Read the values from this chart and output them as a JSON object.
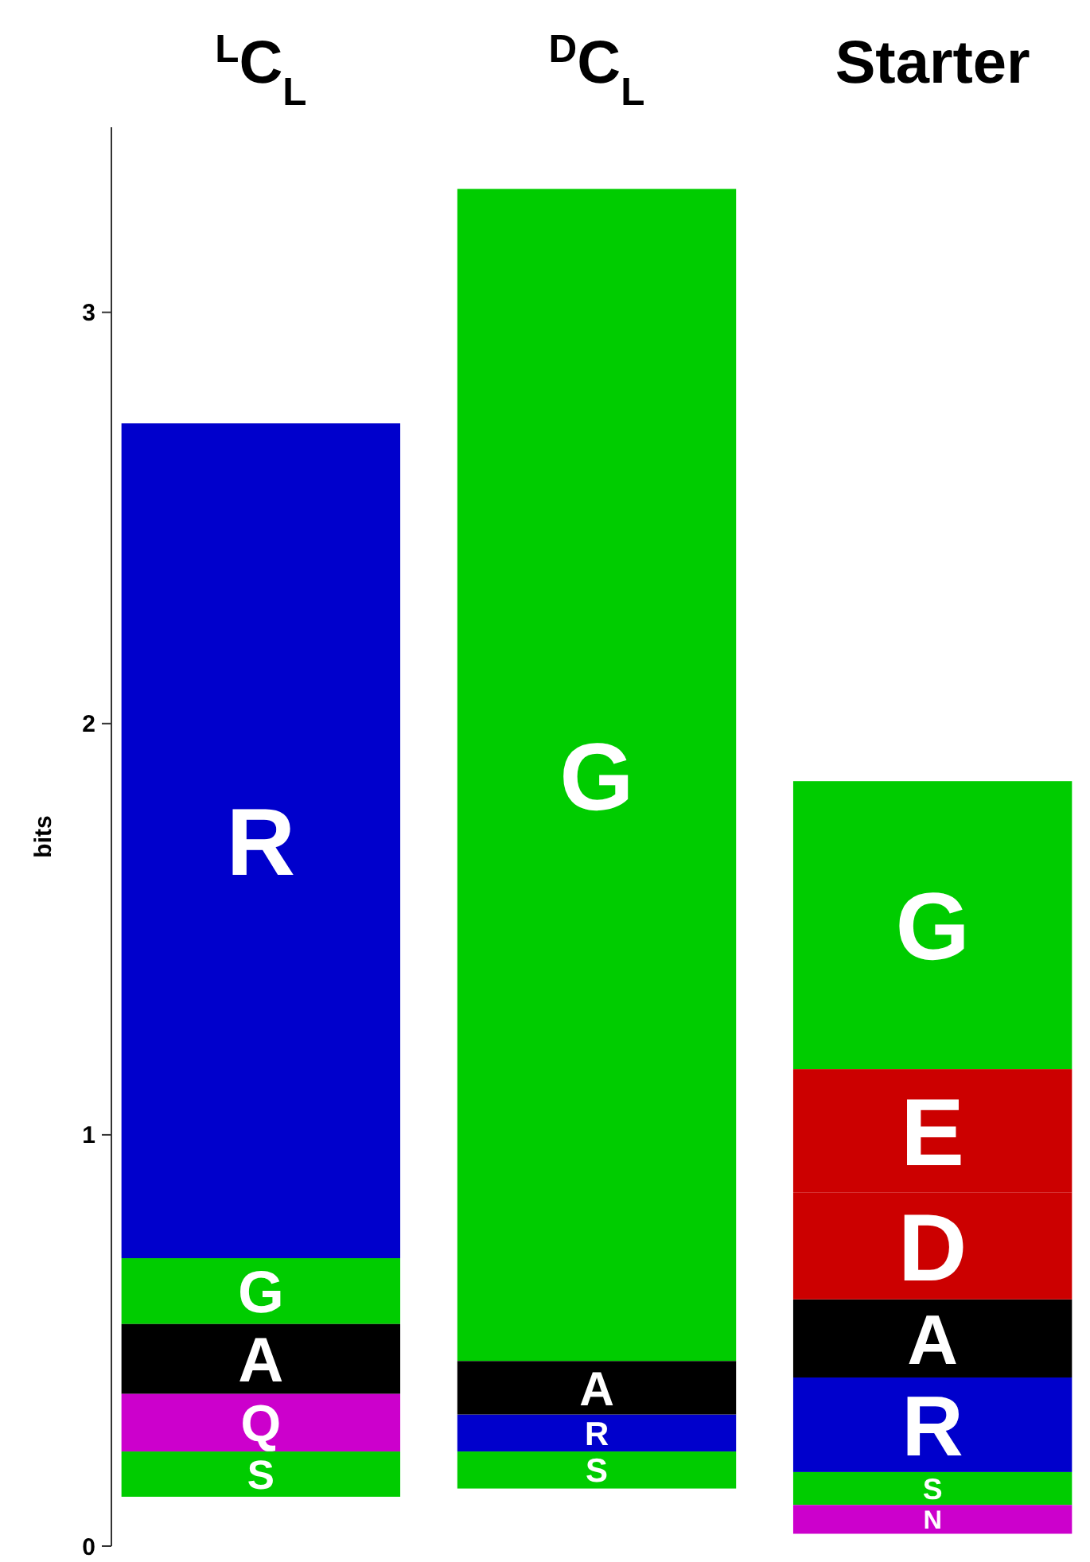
{
  "chart_data": {
    "type": "bar",
    "ylabel": "bits",
    "categories": [
      "$^{L}$C$_{L}$",
      "$^{D}$C$_{L}$",
      "Starter"
    ],
    "ylim": [
      0,
      3.45
    ],
    "yticks": [
      0,
      1,
      2,
      3
    ],
    "grid": false,
    "series": [
      {
        "name": "R",
        "color": "#0000cc",
        "values": [
          2.03,
          0.09,
          0.23
        ],
        "base": [
          0.7,
          0.23,
          0.18
        ]
      },
      {
        "name": "G",
        "color": "#00cc00",
        "values": [
          0.16,
          2.85,
          0.7
        ],
        "base": [
          0.54,
          0.45,
          1.16
        ]
      },
      {
        "name": "A",
        "color": "#000000",
        "values": [
          0.17,
          0.13,
          0.19
        ],
        "base": [
          0.37,
          0.32,
          0.41
        ]
      },
      {
        "name": "Q",
        "color": "#cc00cc",
        "values": [
          0.14,
          null,
          null
        ],
        "base": [
          0.23,
          null,
          null
        ]
      },
      {
        "name": "S",
        "color": "#00cc00",
        "values": [
          0.11,
          0.09,
          0.08
        ],
        "base": [
          0.12,
          0.14,
          0.1
        ]
      },
      {
        "name": "E",
        "color": "#cc0000",
        "values": [
          null,
          null,
          0.3
        ],
        "base": [
          null,
          null,
          0.86
        ]
      },
      {
        "name": "D",
        "color": "#cc0000",
        "values": [
          null,
          null,
          0.26
        ],
        "base": [
          null,
          null,
          0.6
        ]
      },
      {
        "name": "N",
        "color": "#cc00cc",
        "values": [
          null,
          null,
          0.07
        ],
        "base": [
          null,
          null,
          0.03
        ]
      }
    ]
  }
}
